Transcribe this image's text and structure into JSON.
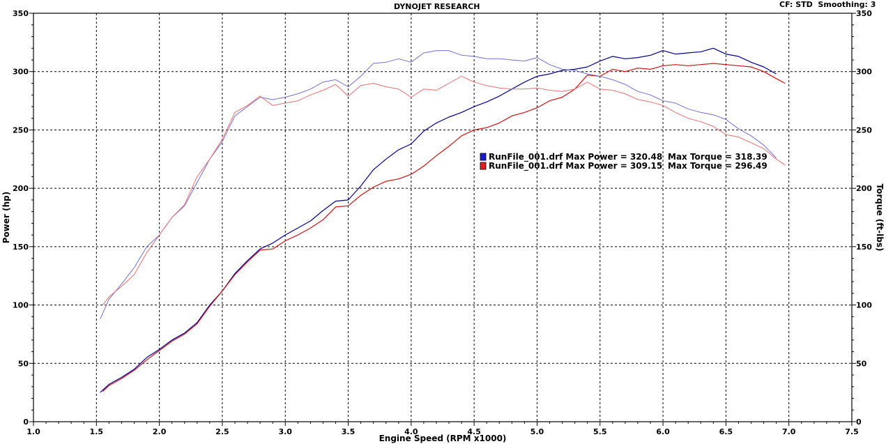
{
  "header": {
    "title": "DYNOJET RESEARCH",
    "correction": "CF: STD  Smoothing: 3"
  },
  "chart_data": {
    "type": "line",
    "title": "DYNOJET RESEARCH",
    "xlabel": "Engine Speed (RPM x1000)",
    "ylabel": "Power (hp)",
    "y2label": "Torque (ft-lbs)",
    "xlim": [
      1.0,
      7.5
    ],
    "ylim": [
      0,
      350
    ],
    "y2lim": [
      0,
      350
    ],
    "x_ticks": [
      "1.0",
      "1.5",
      "2.0",
      "2.5",
      "3.0",
      "3.5",
      "4.0",
      "4.5",
      "5.0",
      "5.5",
      "6.0",
      "6.5",
      "7.0",
      "7.5"
    ],
    "y_ticks": [
      "0",
      "50",
      "100",
      "150",
      "200",
      "250",
      "300",
      "350"
    ],
    "y2_ticks": [
      "0",
      "50",
      "100",
      "150",
      "200",
      "250",
      "300",
      "350"
    ],
    "grid": true,
    "legend": [
      {
        "label": "RunFile_001.drf Max Power = 320.48",
        "torque": "Max Torque = 318.39",
        "color": "#1a1ad0"
      },
      {
        "label": "RunFile_001.drf Max Power = 309.15",
        "torque": "Max Torque = 296.49",
        "color": "#e02020"
      }
    ],
    "series": [
      {
        "kind": "power",
        "color": "#000090",
        "points": [
          [
            1.53,
            25
          ],
          [
            1.6,
            32
          ],
          [
            1.7,
            38
          ],
          [
            1.8,
            45
          ],
          [
            1.9,
            55
          ],
          [
            2.0,
            62
          ],
          [
            2.1,
            70
          ],
          [
            2.2,
            76
          ],
          [
            2.3,
            85
          ],
          [
            2.4,
            100
          ],
          [
            2.5,
            112
          ],
          [
            2.6,
            127
          ],
          [
            2.7,
            138
          ],
          [
            2.8,
            148
          ],
          [
            2.9,
            153
          ],
          [
            3.0,
            160
          ],
          [
            3.1,
            166
          ],
          [
            3.2,
            172
          ],
          [
            3.3,
            181
          ],
          [
            3.4,
            189
          ],
          [
            3.5,
            190
          ],
          [
            3.6,
            202
          ],
          [
            3.7,
            216
          ],
          [
            3.8,
            225
          ],
          [
            3.9,
            233
          ],
          [
            4.0,
            238
          ],
          [
            4.1,
            249
          ],
          [
            4.2,
            256
          ],
          [
            4.3,
            261
          ],
          [
            4.4,
            265
          ],
          [
            4.5,
            270
          ],
          [
            4.6,
            274
          ],
          [
            4.7,
            279
          ],
          [
            4.8,
            285
          ],
          [
            4.9,
            291
          ],
          [
            5.0,
            296
          ],
          [
            5.1,
            298
          ],
          [
            5.2,
            301
          ],
          [
            5.3,
            302
          ],
          [
            5.4,
            304
          ],
          [
            5.5,
            309
          ],
          [
            5.6,
            313
          ],
          [
            5.7,
            311
          ],
          [
            5.8,
            312
          ],
          [
            5.9,
            314
          ],
          [
            6.0,
            318
          ],
          [
            6.1,
            315
          ],
          [
            6.2,
            316
          ],
          [
            6.3,
            317
          ],
          [
            6.4,
            320
          ],
          [
            6.5,
            315
          ],
          [
            6.6,
            313
          ],
          [
            6.7,
            308
          ],
          [
            6.8,
            304
          ],
          [
            6.9,
            298
          ]
        ]
      },
      {
        "kind": "power",
        "color": "#d01010",
        "points": [
          [
            1.55,
            26
          ],
          [
            1.6,
            31
          ],
          [
            1.7,
            37
          ],
          [
            1.8,
            44
          ],
          [
            1.9,
            53
          ],
          [
            2.0,
            61
          ],
          [
            2.1,
            69
          ],
          [
            2.2,
            75
          ],
          [
            2.3,
            84
          ],
          [
            2.4,
            99
          ],
          [
            2.5,
            112
          ],
          [
            2.6,
            126
          ],
          [
            2.7,
            137
          ],
          [
            2.8,
            147
          ],
          [
            2.9,
            148
          ],
          [
            3.0,
            155
          ],
          [
            3.1,
            160
          ],
          [
            3.2,
            166
          ],
          [
            3.3,
            173
          ],
          [
            3.4,
            184
          ],
          [
            3.5,
            185
          ],
          [
            3.6,
            194
          ],
          [
            3.7,
            201
          ],
          [
            3.8,
            206
          ],
          [
            3.9,
            208
          ],
          [
            4.0,
            212
          ],
          [
            4.1,
            219
          ],
          [
            4.2,
            228
          ],
          [
            4.3,
            236
          ],
          [
            4.4,
            245
          ],
          [
            4.5,
            250
          ],
          [
            4.6,
            252
          ],
          [
            4.7,
            256
          ],
          [
            4.8,
            262
          ],
          [
            4.9,
            265
          ],
          [
            5.0,
            269
          ],
          [
            5.1,
            275
          ],
          [
            5.2,
            278
          ],
          [
            5.3,
            285
          ],
          [
            5.4,
            297
          ],
          [
            5.5,
            296
          ],
          [
            5.6,
            302
          ],
          [
            5.7,
            300
          ],
          [
            5.8,
            303
          ],
          [
            5.9,
            302
          ],
          [
            6.0,
            305
          ],
          [
            6.1,
            306
          ],
          [
            6.2,
            305
          ],
          [
            6.3,
            306
          ],
          [
            6.4,
            307
          ],
          [
            6.5,
            306
          ],
          [
            6.6,
            305
          ],
          [
            6.7,
            304
          ],
          [
            6.8,
            300
          ],
          [
            6.9,
            294
          ],
          [
            6.97,
            290
          ]
        ]
      },
      {
        "kind": "torque",
        "color": "#7070d8",
        "points": [
          [
            1.53,
            88
          ],
          [
            1.6,
            105
          ],
          [
            1.7,
            118
          ],
          [
            1.8,
            132
          ],
          [
            1.9,
            150
          ],
          [
            2.0,
            160
          ],
          [
            2.1,
            175
          ],
          [
            2.2,
            185
          ],
          [
            2.3,
            205
          ],
          [
            2.4,
            225
          ],
          [
            2.5,
            240
          ],
          [
            2.6,
            262
          ],
          [
            2.7,
            270
          ],
          [
            2.8,
            278
          ],
          [
            2.9,
            276
          ],
          [
            3.0,
            278
          ],
          [
            3.1,
            281
          ],
          [
            3.2,
            285
          ],
          [
            3.3,
            291
          ],
          [
            3.4,
            293
          ],
          [
            3.5,
            287
          ],
          [
            3.6,
            296
          ],
          [
            3.7,
            307
          ],
          [
            3.8,
            308
          ],
          [
            3.9,
            311
          ],
          [
            4.0,
            308
          ],
          [
            4.1,
            316
          ],
          [
            4.2,
            318
          ],
          [
            4.3,
            318
          ],
          [
            4.4,
            314
          ],
          [
            4.5,
            313
          ],
          [
            4.6,
            311
          ],
          [
            4.7,
            311
          ],
          [
            4.8,
            310
          ],
          [
            4.9,
            309
          ],
          [
            5.0,
            312
          ],
          [
            5.1,
            306
          ],
          [
            5.2,
            302
          ],
          [
            5.3,
            301
          ],
          [
            5.4,
            298
          ],
          [
            5.5,
            296
          ],
          [
            5.6,
            293
          ],
          [
            5.7,
            289
          ],
          [
            5.8,
            283
          ],
          [
            5.9,
            280
          ],
          [
            6.0,
            275
          ],
          [
            6.1,
            273
          ],
          [
            6.2,
            268
          ],
          [
            6.3,
            265
          ],
          [
            6.4,
            263
          ],
          [
            6.5,
            259
          ],
          [
            6.6,
            251
          ],
          [
            6.7,
            245
          ],
          [
            6.8,
            237
          ],
          [
            6.9,
            226
          ]
        ]
      },
      {
        "kind": "torque",
        "color": "#e87070",
        "points": [
          [
            1.55,
            100
          ],
          [
            1.6,
            107
          ],
          [
            1.7,
            116
          ],
          [
            1.8,
            126
          ],
          [
            1.9,
            145
          ],
          [
            2.0,
            160
          ],
          [
            2.1,
            175
          ],
          [
            2.2,
            186
          ],
          [
            2.3,
            210
          ],
          [
            2.4,
            225
          ],
          [
            2.5,
            242
          ],
          [
            2.6,
            265
          ],
          [
            2.7,
            271
          ],
          [
            2.8,
            279
          ],
          [
            2.9,
            271
          ],
          [
            3.0,
            273
          ],
          [
            3.1,
            275
          ],
          [
            3.2,
            280
          ],
          [
            3.3,
            284
          ],
          [
            3.4,
            289
          ],
          [
            3.5,
            279
          ],
          [
            3.6,
            288
          ],
          [
            3.7,
            290
          ],
          [
            3.8,
            287
          ],
          [
            3.9,
            285
          ],
          [
            4.0,
            278
          ],
          [
            4.1,
            285
          ],
          [
            4.2,
            284
          ],
          [
            4.3,
            290
          ],
          [
            4.4,
            296
          ],
          [
            4.5,
            291
          ],
          [
            4.6,
            288
          ],
          [
            4.7,
            286
          ],
          [
            4.8,
            285
          ],
          [
            4.9,
            285
          ],
          [
            5.0,
            286
          ],
          [
            5.1,
            284
          ],
          [
            5.2,
            283
          ],
          [
            5.3,
            285
          ],
          [
            5.4,
            291
          ],
          [
            5.5,
            285
          ],
          [
            5.6,
            284
          ],
          [
            5.7,
            281
          ],
          [
            5.8,
            276
          ],
          [
            5.9,
            274
          ],
          [
            6.0,
            271
          ],
          [
            6.1,
            265
          ],
          [
            6.2,
            260
          ],
          [
            6.3,
            257
          ],
          [
            6.4,
            253
          ],
          [
            6.5,
            246
          ],
          [
            6.6,
            244
          ],
          [
            6.7,
            239
          ],
          [
            6.8,
            234
          ],
          [
            6.9,
            225
          ],
          [
            6.97,
            220
          ]
        ]
      }
    ]
  }
}
